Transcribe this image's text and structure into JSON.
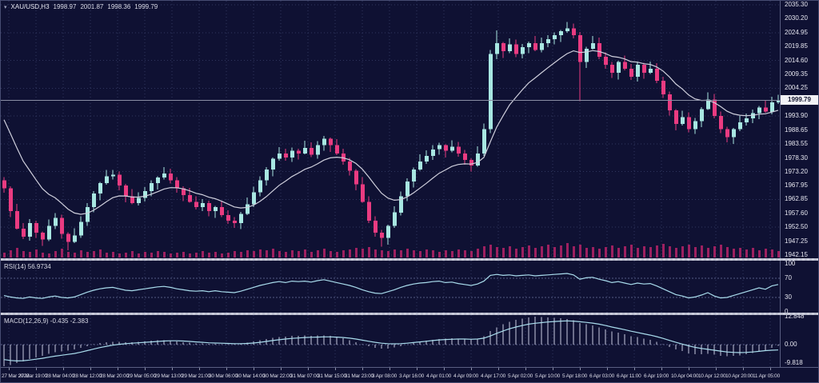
{
  "header": {
    "menu_icon": "▾",
    "symbol": "XAU/USD,H3",
    "open": "1998.97",
    "high": "2001.87",
    "low": "1998.36",
    "close": "1999.79"
  },
  "rsi_panel": {
    "label": "RSI(14) 56.9734"
  },
  "macd_panel": {
    "label": "MACD(12,26,9) -0.435 -2.383"
  },
  "price_scale": {
    "current_price": "1999.79"
  },
  "chart_data": {
    "type": "candlestick",
    "title": "XAU/USD H3 with RSI(14) and MACD(12,26,9)",
    "price_axis": {
      "min": 1942.15,
      "max": 2035.3,
      "tick_labels": [
        {
          "text": "2035.30",
          "value": 2035.3
        },
        {
          "text": "2030.20",
          "value": 2030.2
        },
        {
          "text": "2024.95",
          "value": 2024.95
        },
        {
          "text": "2019.85",
          "value": 2019.85
        },
        {
          "text": "2014.60",
          "value": 2014.6
        },
        {
          "text": "2009.35",
          "value": 2009.35
        },
        {
          "text": "2004.25",
          "value": 2004.25
        },
        {
          "text": "1993.90",
          "value": 1993.9
        },
        {
          "text": "1988.65",
          "value": 1988.65
        },
        {
          "text": "1983.55",
          "value": 1983.55
        },
        {
          "text": "1978.30",
          "value": 1978.3
        },
        {
          "text": "1973.20",
          "value": 1973.2
        },
        {
          "text": "1967.95",
          "value": 1967.95
        },
        {
          "text": "1962.85",
          "value": 1962.85
        },
        {
          "text": "1957.60",
          "value": 1957.6
        },
        {
          "text": "1952.50",
          "value": 1952.5
        },
        {
          "text": "1947.25",
          "value": 1947.25
        },
        {
          "text": "1942.15",
          "value": 1942.15
        }
      ],
      "grid_values": [
        2035.3,
        2024.95,
        2014.6,
        2004.25,
        1993.9,
        1983.55,
        1973.2,
        1962.85,
        1952.5,
        1942.15
      ],
      "current_price": 1999.79
    },
    "time_labels": [
      "27 Mar 2023",
      "27 Mar 19:00",
      "28 Mar 04:00",
      "28 Mar 12:00",
      "28 Mar 20:00",
      "29 Mar 05:00",
      "29 Mar 13:00",
      "29 Mar 21:00",
      "30 Mar 06:00",
      "30 Mar 14:00",
      "30 Mar 22:00",
      "31 Mar 07:00",
      "31 Mar 15:00",
      "31 Mar 23:00",
      "3 Apr 08:00",
      "3 Apr 16:00",
      "4 Apr 01:00",
      "4 Apr 09:00",
      "4 Apr 17:00",
      "5 Apr 02:00",
      "5 Apr 10:00",
      "5 Apr 18:00",
      "6 Apr 03:00",
      "6 Apr 11:00",
      "6 Apr 19:00",
      "10 Apr 04:00",
      "10 Apr 12:00",
      "10 Apr 20:00",
      "11 Apr 05:00"
    ],
    "candles": {
      "first_open": 1970.0,
      "closes": [
        1967,
        1958.5,
        1952,
        1949,
        1954,
        1950.5,
        1948,
        1953,
        1956,
        1950,
        1947,
        1949.5,
        1954.5,
        1960,
        1965,
        1969,
        1971.5,
        1972,
        1968,
        1964,
        1961.5,
        1963.5,
        1966,
        1969,
        1971,
        1972.5,
        1970,
        1967,
        1964.5,
        1962,
        1960,
        1961.5,
        1958.5,
        1960,
        1957,
        1955,
        1954,
        1957.5,
        1961,
        1965.5,
        1970,
        1974,
        1978,
        1980,
        1978.5,
        1981,
        1980,
        1982,
        1979.5,
        1983,
        1985.5,
        1983,
        1980,
        1977,
        1973.5,
        1968.5,
        1962,
        1955,
        1950.5,
        1948.5,
        1953,
        1958,
        1964,
        1969.5,
        1974,
        1977,
        1979,
        1981.5,
        1983,
        1981,
        1982.5,
        1980,
        1977.5,
        1975.5,
        1980,
        1989,
        2017,
        2021,
        2018,
        2020.5,
        2017,
        2019.5,
        2021,
        2018.5,
        2021,
        2022.5,
        2024,
        2025.5,
        2026.5,
        2024,
        2014,
        2019,
        2021,
        2016,
        2013,
        2010,
        2014,
        2011.5,
        2008.5,
        2013,
        2010,
        2011.5,
        2007,
        2002,
        1996,
        1991,
        1993.5,
        1989,
        1992,
        1996.5,
        2000,
        1994,
        1989,
        1986,
        1989,
        1991.5,
        1993,
        1995,
        1997,
        1995.5,
        1998.97,
        1999.79
      ],
      "wick_overrides": {
        "10": {
          "low": 1944.0
        },
        "59": {
          "low": 1945.3
        },
        "77": {
          "high": 2025.8
        },
        "90": {
          "low": 1999.5
        },
        "121": {
          "high": 2001.87,
          "low": 1998.36
        }
      }
    },
    "volumes": [
      6,
      9,
      12,
      8,
      7,
      10,
      6,
      5,
      8,
      11,
      7,
      6,
      9,
      7,
      8,
      10,
      6,
      7,
      5,
      6,
      8,
      5,
      7,
      6,
      8,
      7,
      5,
      6,
      7,
      5,
      6,
      8,
      6,
      7,
      5,
      6,
      8,
      7,
      9,
      8,
      10,
      9,
      11,
      8,
      7,
      9,
      8,
      10,
      7,
      9,
      11,
      8,
      7,
      9,
      10,
      12,
      11,
      13,
      10,
      9,
      8,
      10,
      9,
      11,
      9,
      8,
      10,
      9,
      7,
      9,
      8,
      10,
      9,
      8,
      11,
      14,
      16,
      13,
      12,
      14,
      11,
      13,
      15,
      12,
      14,
      16,
      13,
      15,
      18,
      14,
      16,
      12,
      13,
      11,
      13,
      15,
      12,
      14,
      16,
      12,
      14,
      13,
      15,
      17,
      14,
      12,
      14,
      16,
      13,
      15,
      12,
      14,
      16,
      13,
      11,
      12,
      10,
      12,
      9,
      11,
      10,
      8
    ],
    "ma": {
      "type": "ema",
      "alpha": 0.15,
      "seed": 1997
    },
    "rsi": {
      "label": "RSI(14)",
      "value": 56.9734,
      "range": [
        0,
        100
      ],
      "levels": [
        70,
        30
      ],
      "scale_labels": [
        {
          "text": "100",
          "value": 100
        },
        {
          "text": "70",
          "value": 70
        },
        {
          "text": "30",
          "value": 30
        },
        {
          "text": "0",
          "value": 0
        }
      ],
      "values": [
        34,
        31,
        29,
        28,
        31,
        29,
        28,
        31,
        33,
        30,
        29,
        31,
        36,
        41,
        45,
        48,
        50,
        51,
        48,
        45,
        44,
        46,
        48,
        50,
        52,
        53,
        51,
        48,
        46,
        44,
        43,
        44,
        42,
        44,
        42,
        41,
        40,
        43,
        47,
        51,
        55,
        58,
        61,
        63,
        61,
        64,
        63,
        64,
        62,
        65,
        67,
        64,
        61,
        58,
        55,
        51,
        46,
        42,
        39,
        38,
        42,
        46,
        51,
        55,
        58,
        60,
        61,
        63,
        64,
        61,
        62,
        59,
        57,
        55,
        58,
        64,
        76,
        78,
        76,
        77,
        75,
        76,
        77,
        75,
        76,
        77,
        78,
        79,
        80,
        77,
        68,
        71,
        72,
        68,
        65,
        61,
        63,
        60,
        57,
        60,
        58,
        59,
        54,
        48,
        42,
        36,
        33,
        29,
        31,
        35,
        40,
        33,
        29,
        30,
        34,
        38,
        42,
        46,
        50,
        47,
        54,
        56.97
      ]
    },
    "macd": {
      "label": "MACD(12,26,9)",
      "main_value": -0.435,
      "signal_value": -2.383,
      "range": [
        -9.818,
        12.848
      ],
      "scale_labels": [
        {
          "text": "12.848",
          "value": 12.848
        },
        {
          "text": "0.00",
          "value": 0
        },
        {
          "text": "-9.818",
          "value": -9.818
        }
      ],
      "signal": [
        -6.8,
        -7.2,
        -7.4,
        -7.3,
        -7,
        -6.6,
        -6.2,
        -5.7,
        -5.2,
        -4.8,
        -4.4,
        -4,
        -3.4,
        -2.7,
        -2,
        -1.3,
        -0.7,
        -0.2,
        0.2,
        0.5,
        0.7,
        0.9,
        1.1,
        1.3,
        1.5,
        1.7,
        1.8,
        1.8,
        1.7,
        1.5,
        1.3,
        1.1,
        0.9,
        0.8,
        0.7,
        0.6,
        0.5,
        0.5,
        0.6,
        0.8,
        1.1,
        1.5,
        1.9,
        2.3,
        2.6,
        2.9,
        3.1,
        3.3,
        3.4,
        3.5,
        3.6,
        3.6,
        3.5,
        3.3,
        3,
        2.6,
        2.1,
        1.6,
        1.1,
        0.7,
        0.5,
        0.4,
        0.5,
        0.7,
        1,
        1.3,
        1.6,
        1.9,
        2.2,
        2.4,
        2.5,
        2.6,
        2.6,
        2.5,
        2.6,
        3,
        4,
        5.2,
        6.3,
        7.3,
        8.1,
        8.8,
        9.4,
        9.8,
        10.1,
        10.4,
        10.6,
        10.8,
        10.9,
        10.8,
        10.5,
        10.2,
        9.9,
        9.4,
        8.8,
        8.1,
        7.5,
        6.9,
        6.2,
        5.6,
        5,
        4.4,
        3.7,
        2.9,
        2,
        1.1,
        0.3,
        -0.5,
        -1.2,
        -1.7,
        -2.1,
        -2.5,
        -2.9,
        -3.3,
        -3.5,
        -3.6,
        -3.5,
        -3.3,
        -3,
        -2.7,
        -2.5,
        -2.383
      ],
      "main": [
        -9.8,
        -9.2,
        -8.4,
        -7.6,
        -6.6,
        -5.8,
        -5,
        -4.1,
        -3.4,
        -3,
        -2.6,
        -2.2,
        -1.4,
        -0.6,
        0.2,
        0.8,
        1.2,
        1.4,
        1.4,
        1.2,
        1.1,
        1.3,
        1.5,
        1.8,
        2,
        2.1,
        1.9,
        1.6,
        1.2,
        0.9,
        0.6,
        0.6,
        0.4,
        0.5,
        0.3,
        0.2,
        0.2,
        0.4,
        0.9,
        1.5,
        2.1,
        2.7,
        3.2,
        3.6,
        3.7,
        4,
        4.1,
        4.2,
        4.1,
        4.2,
        4.3,
        4,
        3.5,
        2.9,
        2.1,
        1.2,
        0.2,
        -0.7,
        -1.4,
        -1.8,
        -1.7,
        -1.3,
        -0.7,
        0,
        0.7,
        1.3,
        1.8,
        2.3,
        2.7,
        2.8,
        2.9,
        2.8,
        2.6,
        2.4,
        2.7,
        3.8,
        6.2,
        8,
        9.3,
        10.4,
        11.3,
        12,
        12.5,
        12.8,
        12.7,
        12.5,
        12.3,
        12.1,
        11.8,
        11.2,
        10,
        9.4,
        8.9,
        8,
        7,
        6,
        5.5,
        4.8,
        3.9,
        3.5,
        2.8,
        2.3,
        1.4,
        0.3,
        -1,
        -2.2,
        -2.9,
        -3.9,
        -4.3,
        -4.3,
        -4.2,
        -4.6,
        -5,
        -5.2,
        -5.1,
        -4.8,
        -4.3,
        -3.7,
        -3,
        -2.6,
        -1.5,
        -0.435
      ]
    },
    "colors": {
      "background": "#0f1133",
      "bull": "#a8e7e2",
      "bear": "#ea3b81",
      "ma_line": "#cfcfdc",
      "volume": "#9e2060",
      "indicator_line": "#a9dcec",
      "macd_histogram": "#c9cce0",
      "grid": "#30365f",
      "level_line": "#565b85",
      "bid_line": "#8a8ea4",
      "badge_bg": "#f2f2f6",
      "badge_text": "#11132d"
    }
  }
}
